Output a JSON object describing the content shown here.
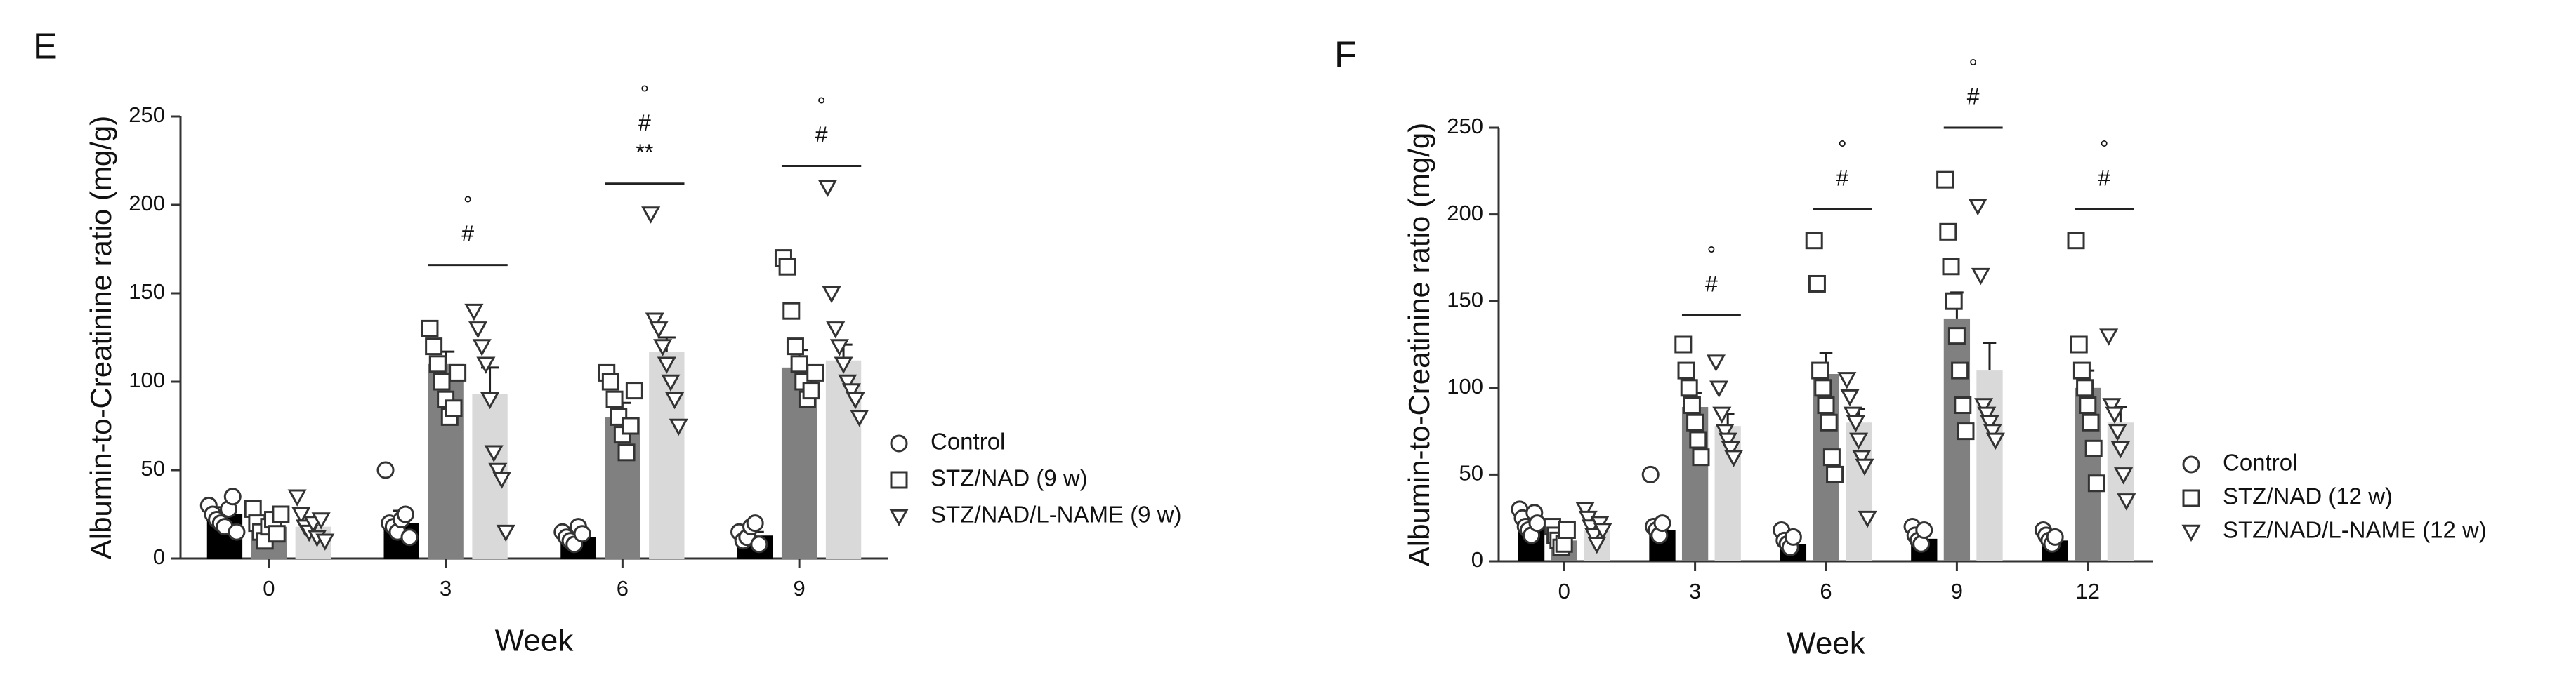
{
  "chart_data": [
    {
      "type": "bar",
      "panel": "E",
      "x_label": "Week",
      "y_label": "Albumin-to-Creatinine ratio (mg/g)",
      "categories": [
        "0",
        "3",
        "6",
        "9"
      ],
      "ylim": [
        0,
        250
      ],
      "yticks": [
        0,
        50,
        100,
        150,
        200,
        250
      ],
      "series": [
        {
          "name": "Control",
          "color": "#000000",
          "marker": "circle",
          "values": [
            25,
            20,
            12,
            13
          ],
          "errors": [
            4,
            7,
            2,
            2
          ],
          "points": [
            [
              30,
              25,
              22,
              20,
              18,
              28,
              35,
              15
            ],
            [
              50,
              20,
              18,
              15,
              22,
              25,
              12
            ],
            [
              15,
              12,
              10,
              8,
              18,
              14
            ],
            [
              15,
              10,
              12,
              18,
              20,
              8
            ]
          ]
        },
        {
          "name": "STZ/NAD (9 w)",
          "color": "#808080",
          "marker": "square",
          "values": [
            18,
            110,
            80,
            108
          ],
          "errors": [
            3,
            7,
            8,
            10
          ],
          "points": [
            [
              28,
              20,
              15,
              10,
              18,
              22,
              14,
              25
            ],
            [
              130,
              120,
              110,
              100,
              90,
              80,
              85,
              105
            ],
            [
              105,
              100,
              90,
              80,
              70,
              60,
              75,
              95
            ],
            [
              170,
              165,
              140,
              120,
              110,
              100,
              90,
              95,
              105
            ]
          ]
        },
        {
          "name": "STZ/NAD/L-NAME (9 w)",
          "color": "#d9d9d9",
          "marker": "triangle",
          "values": [
            18,
            93,
            117,
            112
          ],
          "errors": [
            3,
            15,
            8,
            9
          ],
          "points": [
            [
              35,
              25,
              18,
              15,
              20,
              12,
              22,
              10
            ],
            [
              140,
              130,
              120,
              110,
              90,
              60,
              50,
              45,
              15
            ],
            [
              195,
              135,
              130,
              120,
              110,
              100,
              90,
              75
            ],
            [
              210,
              150,
              130,
              120,
              110,
              100,
              95,
              90,
              80
            ]
          ]
        }
      ],
      "brackets": [
        null,
        {
          "y": 166,
          "labels": [
            "#",
            "°"
          ]
        },
        {
          "y": 212,
          "labels": [
            "**",
            "#",
            "°"
          ]
        },
        {
          "y": 222,
          "labels": [
            "#",
            "°"
          ]
        }
      ]
    },
    {
      "type": "bar",
      "panel": "F",
      "x_label": "Week",
      "y_label": "Albumin-to-Creatinine ratio (mg/g)",
      "categories": [
        "0",
        "3",
        "6",
        "9",
        "12"
      ],
      "ylim": [
        0,
        250
      ],
      "yticks": [
        0,
        50,
        100,
        150,
        200,
        250
      ],
      "series": [
        {
          "name": "Control",
          "color": "#000000",
          "marker": "circle",
          "values": [
            22,
            18,
            10,
            13,
            12
          ],
          "errors": [
            3,
            6,
            2,
            2,
            2
          ],
          "points": [
            [
              30,
              25,
              20,
              18,
              15,
              28,
              22
            ],
            [
              50,
              20,
              18,
              15,
              22
            ],
            [
              18,
              12,
              10,
              8,
              14
            ],
            [
              20,
              15,
              12,
              10,
              18
            ],
            [
              18,
              15,
              12,
              10,
              14
            ]
          ]
        },
        {
          "name": "STZ/NAD (12 w)",
          "color": "#808080",
          "marker": "square",
          "values": [
            12,
            89,
            108,
            140,
            100
          ],
          "errors": [
            2,
            8,
            12,
            15,
            10
          ],
          "points": [
            [
              20,
              15,
              12,
              8,
              10,
              18
            ],
            [
              125,
              110,
              100,
              90,
              80,
              70,
              60
            ],
            [
              185,
              160,
              110,
              100,
              90,
              80,
              60,
              50
            ],
            [
              220,
              190,
              170,
              150,
              130,
              110,
              90,
              75
            ],
            [
              185,
              125,
              110,
              100,
              90,
              80,
              65,
              45
            ]
          ]
        },
        {
          "name": "STZ/NAD/L-NAME (12 w)",
          "color": "#d9d9d9",
          "marker": "triangle",
          "values": [
            18,
            78,
            80,
            110,
            80
          ],
          "errors": [
            3,
            7,
            8,
            16,
            9
          ],
          "points": [
            [
              30,
              25,
              20,
              15,
              10,
              22,
              18
            ],
            [
              115,
              100,
              85,
              75,
              70,
              65,
              60
            ],
            [
              105,
              95,
              85,
              80,
              70,
              60,
              55,
              25
            ],
            [
              205,
              165,
              90,
              85,
              80,
              75,
              70
            ],
            [
              130,
              90,
              85,
              75,
              65,
              50,
              35
            ]
          ]
        }
      ],
      "brackets": [
        null,
        {
          "y": 142,
          "labels": [
            "#",
            "°"
          ]
        },
        {
          "y": 203,
          "labels": [
            "#",
            "°"
          ]
        },
        {
          "y": 250,
          "labels": [
            "#",
            "°"
          ]
        },
        {
          "y": 203,
          "labels": [
            "#",
            "°"
          ]
        }
      ]
    }
  ]
}
